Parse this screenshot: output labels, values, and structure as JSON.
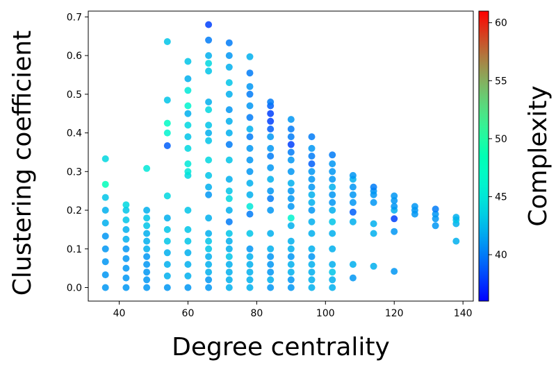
{
  "chart_data": {
    "type": "scatter",
    "xlabel": "Degree centrality",
    "ylabel": "Clustering coefficient",
    "colorbar_label": "Complexity",
    "xlim": [
      31,
      143
    ],
    "ylim": [
      -0.035,
      0.715
    ],
    "x_ticks": [
      40,
      60,
      80,
      100,
      120,
      140
    ],
    "y_ticks": [
      0.0,
      0.1,
      0.2,
      0.3,
      0.4,
      0.5,
      0.6,
      0.7
    ],
    "colorbar_range": [
      36,
      61
    ],
    "colorbar_ticks": [
      40,
      45,
      50,
      55,
      60
    ],
    "colormap": "rainbow",
    "grid": false,
    "marker_opacity": 0.85,
    "points": [
      [
        36,
        0.0,
        41
      ],
      [
        36,
        0.033,
        41
      ],
      [
        36,
        0.067,
        41
      ],
      [
        36,
        0.1,
        41
      ],
      [
        36,
        0.133,
        41
      ],
      [
        36,
        0.167,
        42
      ],
      [
        36,
        0.2,
        42
      ],
      [
        36,
        0.233,
        43
      ],
      [
        36,
        0.267,
        48
      ],
      [
        36,
        0.333,
        44
      ],
      [
        42,
        0.0,
        41
      ],
      [
        42,
        0.025,
        41
      ],
      [
        42,
        0.05,
        41
      ],
      [
        42,
        0.075,
        41
      ],
      [
        42,
        0.1,
        41
      ],
      [
        42,
        0.125,
        42
      ],
      [
        42,
        0.15,
        42
      ],
      [
        42,
        0.175,
        43
      ],
      [
        42,
        0.2,
        43
      ],
      [
        42,
        0.214,
        44
      ],
      [
        48,
        0.0,
        41
      ],
      [
        48,
        0.02,
        41
      ],
      [
        48,
        0.04,
        41
      ],
      [
        48,
        0.06,
        41
      ],
      [
        48,
        0.08,
        41
      ],
      [
        48,
        0.1,
        42
      ],
      [
        48,
        0.12,
        42
      ],
      [
        48,
        0.14,
        42
      ],
      [
        48,
        0.16,
        43
      ],
      [
        48,
        0.18,
        43
      ],
      [
        48,
        0.2,
        42
      ],
      [
        48,
        0.308,
        45
      ],
      [
        54,
        0.0,
        41
      ],
      [
        54,
        0.03,
        42
      ],
      [
        54,
        0.06,
        42
      ],
      [
        54,
        0.09,
        42
      ],
      [
        54,
        0.12,
        43
      ],
      [
        54,
        0.15,
        43
      ],
      [
        54,
        0.18,
        42
      ],
      [
        54,
        0.237,
        44
      ],
      [
        54,
        0.367,
        39
      ],
      [
        54,
        0.4,
        46
      ],
      [
        54,
        0.425,
        47
      ],
      [
        54,
        0.485,
        43
      ],
      [
        54,
        0.636,
        43
      ],
      [
        60,
        0.0,
        41
      ],
      [
        60,
        0.03,
        42
      ],
      [
        60,
        0.06,
        42
      ],
      [
        60,
        0.09,
        42
      ],
      [
        60,
        0.12,
        43
      ],
      [
        60,
        0.15,
        43
      ],
      [
        60,
        0.2,
        43
      ],
      [
        60,
        0.29,
        44
      ],
      [
        60,
        0.3,
        45
      ],
      [
        60,
        0.32,
        45
      ],
      [
        60,
        0.36,
        44
      ],
      [
        60,
        0.39,
        43
      ],
      [
        60,
        0.42,
        44
      ],
      [
        60,
        0.45,
        42
      ],
      [
        60,
        0.47,
        46
      ],
      [
        60,
        0.51,
        45
      ],
      [
        60,
        0.54,
        42
      ],
      [
        60,
        0.585,
        43
      ],
      [
        66,
        0.0,
        41
      ],
      [
        66,
        0.02,
        41
      ],
      [
        66,
        0.04,
        42
      ],
      [
        66,
        0.06,
        42
      ],
      [
        66,
        0.08,
        42
      ],
      [
        66,
        0.1,
        43
      ],
      [
        66,
        0.12,
        43
      ],
      [
        66,
        0.14,
        42
      ],
      [
        66,
        0.18,
        42
      ],
      [
        66,
        0.24,
        41
      ],
      [
        66,
        0.26,
        42
      ],
      [
        66,
        0.29,
        43
      ],
      [
        66,
        0.33,
        44
      ],
      [
        66,
        0.38,
        43
      ],
      [
        66,
        0.4,
        42
      ],
      [
        66,
        0.42,
        43
      ],
      [
        66,
        0.46,
        44
      ],
      [
        66,
        0.48,
        42
      ],
      [
        66,
        0.56,
        43
      ],
      [
        66,
        0.58,
        44
      ],
      [
        66,
        0.6,
        42
      ],
      [
        66,
        0.64,
        40
      ],
      [
        66,
        0.68,
        38
      ],
      [
        72,
        0.0,
        42
      ],
      [
        72,
        0.02,
        42
      ],
      [
        72,
        0.04,
        42
      ],
      [
        72,
        0.06,
        42
      ],
      [
        72,
        0.08,
        43
      ],
      [
        72,
        0.1,
        42
      ],
      [
        72,
        0.12,
        42
      ],
      [
        72,
        0.14,
        43
      ],
      [
        72,
        0.17,
        40
      ],
      [
        72,
        0.2,
        42
      ],
      [
        72,
        0.23,
        44
      ],
      [
        72,
        0.25,
        43
      ],
      [
        72,
        0.28,
        42
      ],
      [
        72,
        0.33,
        43
      ],
      [
        72,
        0.37,
        40
      ],
      [
        72,
        0.4,
        42
      ],
      [
        72,
        0.43,
        42
      ],
      [
        72,
        0.46,
        41
      ],
      [
        72,
        0.5,
        42
      ],
      [
        72,
        0.53,
        43
      ],
      [
        72,
        0.57,
        42
      ],
      [
        72,
        0.6,
        41
      ],
      [
        72,
        0.633,
        40
      ],
      [
        78,
        0.0,
        42
      ],
      [
        78,
        0.02,
        42
      ],
      [
        78,
        0.04,
        42
      ],
      [
        78,
        0.06,
        42
      ],
      [
        78,
        0.08,
        42
      ],
      [
        78,
        0.1,
        41
      ],
      [
        78,
        0.14,
        43
      ],
      [
        78,
        0.19,
        40
      ],
      [
        78,
        0.21,
        45
      ],
      [
        78,
        0.24,
        42
      ],
      [
        78,
        0.27,
        42
      ],
      [
        78,
        0.3,
        41
      ],
      [
        78,
        0.33,
        41
      ],
      [
        78,
        0.36,
        41
      ],
      [
        78,
        0.39,
        40
      ],
      [
        78,
        0.41,
        42
      ],
      [
        78,
        0.44,
        40
      ],
      [
        78,
        0.47,
        41
      ],
      [
        78,
        0.5,
        40
      ],
      [
        78,
        0.52,
        41
      ],
      [
        78,
        0.555,
        40
      ],
      [
        78,
        0.597,
        42
      ],
      [
        84,
        0.0,
        41
      ],
      [
        84,
        0.02,
        42
      ],
      [
        84,
        0.04,
        41
      ],
      [
        84,
        0.06,
        41
      ],
      [
        84,
        0.08,
        41
      ],
      [
        84,
        0.1,
        42
      ],
      [
        84,
        0.14,
        42
      ],
      [
        84,
        0.2,
        41
      ],
      [
        84,
        0.23,
        40
      ],
      [
        84,
        0.25,
        41
      ],
      [
        84,
        0.28,
        42
      ],
      [
        84,
        0.31,
        41
      ],
      [
        84,
        0.34,
        40
      ],
      [
        84,
        0.36,
        41
      ],
      [
        84,
        0.39,
        41
      ],
      [
        84,
        0.41,
        39
      ],
      [
        84,
        0.43,
        38
      ],
      [
        84,
        0.45,
        38
      ],
      [
        84,
        0.47,
        39
      ],
      [
        84,
        0.48,
        40
      ],
      [
        90,
        0.0,
        41
      ],
      [
        90,
        0.02,
        41
      ],
      [
        90,
        0.04,
        42
      ],
      [
        90,
        0.06,
        42
      ],
      [
        90,
        0.08,
        41
      ],
      [
        90,
        0.1,
        42
      ],
      [
        90,
        0.12,
        42
      ],
      [
        90,
        0.16,
        42
      ],
      [
        90,
        0.18,
        46
      ],
      [
        90,
        0.21,
        41
      ],
      [
        90,
        0.23,
        41
      ],
      [
        90,
        0.25,
        41
      ],
      [
        90,
        0.27,
        42
      ],
      [
        90,
        0.3,
        41
      ],
      [
        90,
        0.33,
        41
      ],
      [
        90,
        0.35,
        40
      ],
      [
        90,
        0.37,
        38
      ],
      [
        90,
        0.39,
        40
      ],
      [
        90,
        0.41,
        40
      ],
      [
        90,
        0.435,
        41
      ],
      [
        96,
        0.0,
        42
      ],
      [
        96,
        0.02,
        42
      ],
      [
        96,
        0.04,
        42
      ],
      [
        96,
        0.06,
        42
      ],
      [
        96,
        0.08,
        41
      ],
      [
        96,
        0.1,
        42
      ],
      [
        96,
        0.14,
        42
      ],
      [
        96,
        0.17,
        42
      ],
      [
        96,
        0.2,
        41
      ],
      [
        96,
        0.22,
        42
      ],
      [
        96,
        0.24,
        42
      ],
      [
        96,
        0.26,
        41
      ],
      [
        96,
        0.28,
        41
      ],
      [
        96,
        0.3,
        41
      ],
      [
        96,
        0.32,
        39
      ],
      [
        96,
        0.34,
        40
      ],
      [
        96,
        0.36,
        41
      ],
      [
        96,
        0.39,
        40
      ],
      [
        102,
        0.0,
        42
      ],
      [
        102,
        0.02,
        42
      ],
      [
        102,
        0.04,
        43
      ],
      [
        102,
        0.06,
        42
      ],
      [
        102,
        0.1,
        42
      ],
      [
        102,
        0.14,
        42
      ],
      [
        102,
        0.17,
        43
      ],
      [
        102,
        0.2,
        42
      ],
      [
        102,
        0.22,
        41
      ],
      [
        102,
        0.24,
        41
      ],
      [
        102,
        0.26,
        42
      ],
      [
        102,
        0.28,
        41
      ],
      [
        102,
        0.3,
        41
      ],
      [
        102,
        0.32,
        41
      ],
      [
        102,
        0.343,
        40
      ],
      [
        108,
        0.025,
        41
      ],
      [
        108,
        0.06,
        42
      ],
      [
        108,
        0.17,
        42
      ],
      [
        108,
        0.195,
        39
      ],
      [
        108,
        0.22,
        41
      ],
      [
        108,
        0.24,
        41
      ],
      [
        108,
        0.26,
        41
      ],
      [
        108,
        0.28,
        42
      ],
      [
        108,
        0.29,
        41
      ],
      [
        114,
        0.055,
        42
      ],
      [
        114,
        0.14,
        42
      ],
      [
        114,
        0.165,
        42
      ],
      [
        114,
        0.22,
        41
      ],
      [
        114,
        0.24,
        41
      ],
      [
        114,
        0.25,
        41
      ],
      [
        114,
        0.26,
        40
      ],
      [
        120,
        0.042,
        41
      ],
      [
        120,
        0.145,
        41
      ],
      [
        120,
        0.178,
        38
      ],
      [
        120,
        0.2,
        42
      ],
      [
        120,
        0.21,
        41
      ],
      [
        120,
        0.225,
        41
      ],
      [
        120,
        0.237,
        41
      ],
      [
        126,
        0.19,
        41
      ],
      [
        126,
        0.2,
        41
      ],
      [
        126,
        0.21,
        41
      ],
      [
        132,
        0.16,
        41
      ],
      [
        132,
        0.178,
        41
      ],
      [
        132,
        0.19,
        41
      ],
      [
        132,
        0.203,
        40
      ],
      [
        138,
        0.12,
        42
      ],
      [
        138,
        0.165,
        42
      ],
      [
        138,
        0.175,
        43
      ],
      [
        138,
        0.182,
        42
      ]
    ]
  }
}
